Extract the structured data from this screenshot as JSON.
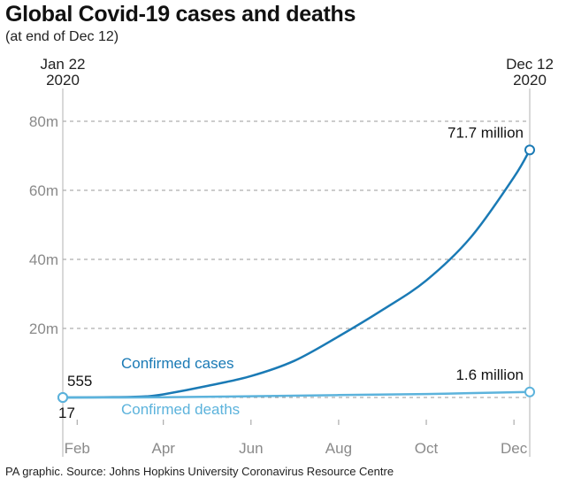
{
  "title": "Global Covid-19 cases and deaths",
  "subtitle": "(at end of Dec 12)",
  "source": "PA graphic. Source: Johns Hopkins University Coronavirus Resource Centre",
  "chart_data": {
    "type": "line",
    "title": "Global Covid-19 cases and deaths",
    "subtitle": "(at end of Dec 12)",
    "xlabel": "",
    "ylabel": "",
    "x_range": [
      "2020-01-22",
      "2020-12-12"
    ],
    "ylim": [
      0,
      80
    ],
    "y_unit": "m",
    "y_ticks": [
      {
        "value": 20,
        "label": "20m"
      },
      {
        "value": 40,
        "label": "40m"
      },
      {
        "value": 60,
        "label": "60m"
      },
      {
        "value": 80,
        "label": "80m"
      }
    ],
    "x_ticks": [
      {
        "date": "2020-02-01",
        "label": "Feb"
      },
      {
        "date": "2020-04-01",
        "label": "Apr"
      },
      {
        "date": "2020-06-01",
        "label": "Jun"
      },
      {
        "date": "2020-08-01",
        "label": "Aug"
      },
      {
        "date": "2020-10-01",
        "label": "Oct"
      },
      {
        "date": "2020-12-01",
        "label": "Dec"
      }
    ],
    "start_marker": {
      "date": "2020-01-22",
      "line1": "Jan 22",
      "line2": "2020"
    },
    "end_marker": {
      "date": "2020-12-12",
      "line1": "Dec 12",
      "line2": "2020"
    },
    "grid": true,
    "series": [
      {
        "name": "Confirmed cases",
        "color": "#1a7ab5",
        "start_label": "555",
        "end_label": "71.7 million",
        "points": [
          {
            "x": "2020-01-22",
            "y": 0.000555
          },
          {
            "x": "2020-03-01",
            "y": 0.09
          },
          {
            "x": "2020-03-20",
            "y": 0.3
          },
          {
            "x": "2020-04-01",
            "y": 0.9
          },
          {
            "x": "2020-05-01",
            "y": 3.3
          },
          {
            "x": "2020-06-01",
            "y": 6.2
          },
          {
            "x": "2020-07-01",
            "y": 10.6
          },
          {
            "x": "2020-08-01",
            "y": 17.7
          },
          {
            "x": "2020-09-01",
            "y": 25.5
          },
          {
            "x": "2020-10-01",
            "y": 33.9
          },
          {
            "x": "2020-11-01",
            "y": 46.4
          },
          {
            "x": "2020-12-01",
            "y": 63.8
          },
          {
            "x": "2020-12-12",
            "y": 71.7
          }
        ]
      },
      {
        "name": "Confirmed deaths",
        "color": "#5cb3dc",
        "start_label": "17",
        "end_label": "1.6 million",
        "points": [
          {
            "x": "2020-01-22",
            "y": 1.7e-05
          },
          {
            "x": "2020-04-01",
            "y": 0.05
          },
          {
            "x": "2020-06-01",
            "y": 0.37
          },
          {
            "x": "2020-08-01",
            "y": 0.68
          },
          {
            "x": "2020-10-01",
            "y": 1.01
          },
          {
            "x": "2020-12-12",
            "y": 1.6
          }
        ]
      }
    ]
  }
}
